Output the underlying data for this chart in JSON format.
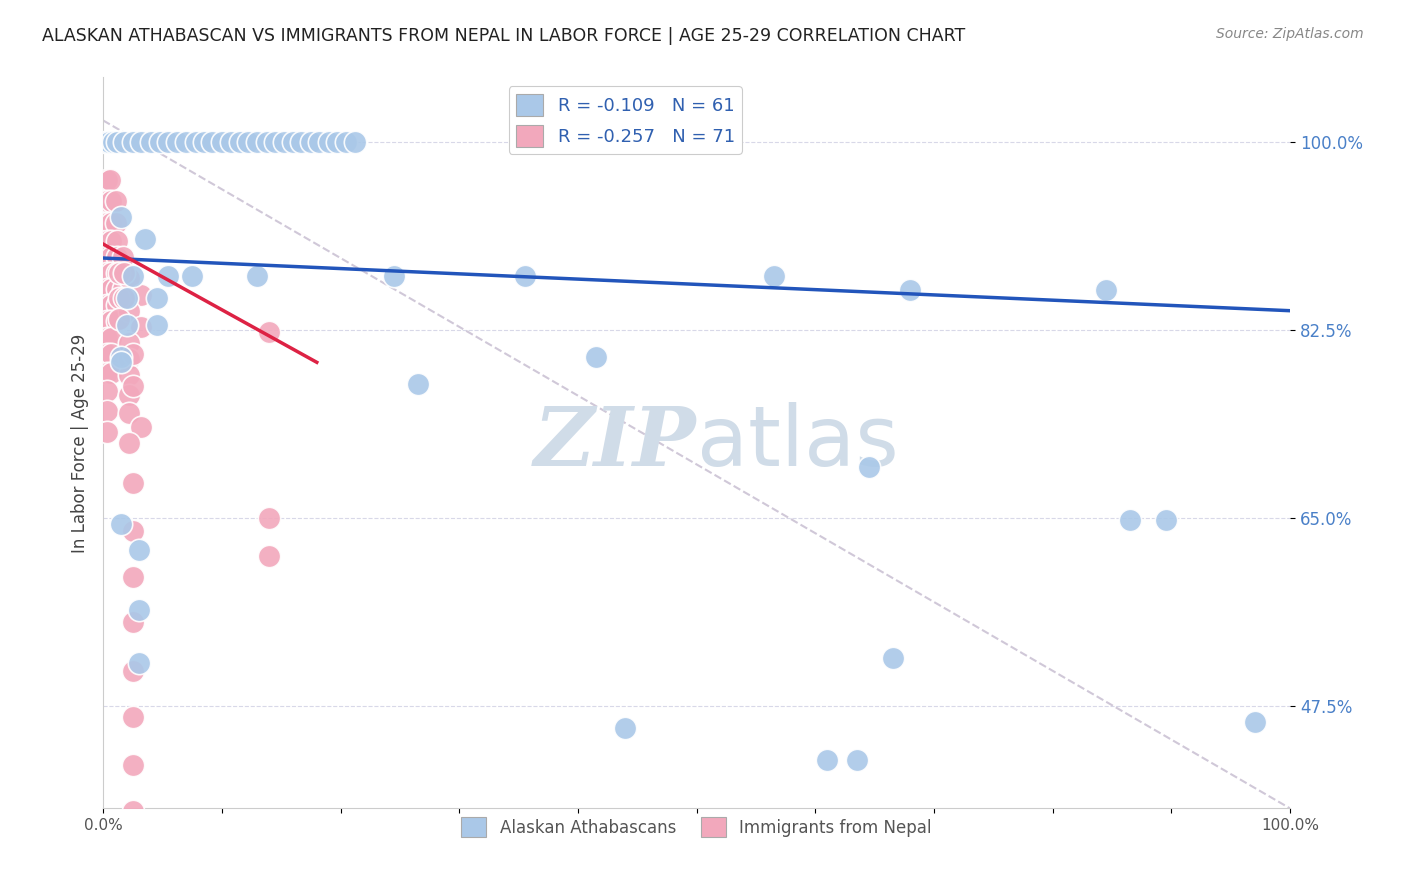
{
  "title": "ALASKAN ATHABASCAN VS IMMIGRANTS FROM NEPAL IN LABOR FORCE | AGE 25-29 CORRELATION CHART",
  "source": "Source: ZipAtlas.com",
  "ylabel": "In Labor Force | Age 25-29",
  "ytick_labels": [
    "100.0%",
    "82.5%",
    "65.0%",
    "47.5%"
  ],
  "ytick_values": [
    1.0,
    0.825,
    0.65,
    0.475
  ],
  "xlim": [
    0.0,
    1.0
  ],
  "ylim": [
    0.38,
    1.06
  ],
  "legend_r_blue": "R = -0.109",
  "legend_n_blue": "N = 61",
  "legend_r_pink": "R = -0.257",
  "legend_n_pink": "N = 71",
  "blue_color": "#aac8e8",
  "pink_color": "#f2a8bc",
  "trendline_blue_color": "#2255bb",
  "trendline_pink_color": "#dd2244",
  "trendline_dash_color": "#d0c8d8",
  "blue_trendline": [
    [
      0.0,
      0.892
    ],
    [
      1.0,
      0.843
    ]
  ],
  "pink_trendline": [
    [
      0.0,
      0.905
    ],
    [
      0.18,
      0.795
    ]
  ],
  "dashed_line": [
    [
      0.0,
      1.02
    ],
    [
      1.0,
      0.38
    ]
  ],
  "blue_scatter": [
    [
      0.002,
      1.0
    ],
    [
      0.005,
      1.0
    ],
    [
      0.008,
      1.0
    ],
    [
      0.012,
      1.0
    ],
    [
      0.018,
      1.0
    ],
    [
      0.025,
      1.0
    ],
    [
      0.032,
      1.0
    ],
    [
      0.04,
      1.0
    ],
    [
      0.048,
      1.0
    ],
    [
      0.055,
      1.0
    ],
    [
      0.062,
      1.0
    ],
    [
      0.07,
      1.0
    ],
    [
      0.078,
      1.0
    ],
    [
      0.085,
      1.0
    ],
    [
      0.092,
      1.0
    ],
    [
      0.1,
      1.0
    ],
    [
      0.108,
      1.0
    ],
    [
      0.115,
      1.0
    ],
    [
      0.122,
      1.0
    ],
    [
      0.13,
      1.0
    ],
    [
      0.138,
      1.0
    ],
    [
      0.145,
      1.0
    ],
    [
      0.152,
      1.0
    ],
    [
      0.16,
      1.0
    ],
    [
      0.167,
      1.0
    ],
    [
      0.175,
      1.0
    ],
    [
      0.182,
      1.0
    ],
    [
      0.19,
      1.0
    ],
    [
      0.197,
      1.0
    ],
    [
      0.205,
      1.0
    ],
    [
      0.212,
      1.0
    ],
    [
      0.015,
      0.93
    ],
    [
      0.035,
      0.91
    ],
    [
      0.025,
      0.875
    ],
    [
      0.055,
      0.875
    ],
    [
      0.075,
      0.875
    ],
    [
      0.02,
      0.855
    ],
    [
      0.045,
      0.855
    ],
    [
      0.02,
      0.83
    ],
    [
      0.045,
      0.83
    ],
    [
      0.015,
      0.8
    ],
    [
      0.13,
      0.875
    ],
    [
      0.245,
      0.875
    ],
    [
      0.355,
      0.875
    ],
    [
      0.565,
      0.875
    ],
    [
      0.68,
      0.862
    ],
    [
      0.845,
      0.862
    ],
    [
      0.415,
      0.8
    ],
    [
      0.265,
      0.775
    ],
    [
      0.645,
      0.698
    ],
    [
      0.865,
      0.648
    ],
    [
      0.895,
      0.648
    ],
    [
      0.665,
      0.52
    ],
    [
      0.44,
      0.455
    ],
    [
      0.61,
      0.425
    ],
    [
      0.635,
      0.425
    ],
    [
      0.97,
      0.46
    ],
    [
      0.015,
      0.795
    ],
    [
      0.015,
      0.645
    ],
    [
      0.03,
      0.62
    ],
    [
      0.03,
      0.565
    ],
    [
      0.03,
      0.515
    ]
  ],
  "pink_scatter": [
    [
      0.003,
      1.0
    ],
    [
      0.006,
      1.0
    ],
    [
      0.009,
      1.0
    ],
    [
      0.013,
      1.0
    ],
    [
      0.003,
      0.965
    ],
    [
      0.006,
      0.965
    ],
    [
      0.003,
      0.945
    ],
    [
      0.007,
      0.945
    ],
    [
      0.011,
      0.945
    ],
    [
      0.003,
      0.925
    ],
    [
      0.007,
      0.925
    ],
    [
      0.011,
      0.925
    ],
    [
      0.003,
      0.908
    ],
    [
      0.007,
      0.908
    ],
    [
      0.012,
      0.908
    ],
    [
      0.003,
      0.893
    ],
    [
      0.007,
      0.893
    ],
    [
      0.012,
      0.893
    ],
    [
      0.017,
      0.893
    ],
    [
      0.003,
      0.878
    ],
    [
      0.007,
      0.878
    ],
    [
      0.012,
      0.878
    ],
    [
      0.017,
      0.878
    ],
    [
      0.003,
      0.863
    ],
    [
      0.007,
      0.863
    ],
    [
      0.012,
      0.863
    ],
    [
      0.017,
      0.863
    ],
    [
      0.003,
      0.848
    ],
    [
      0.007,
      0.848
    ],
    [
      0.012,
      0.848
    ],
    [
      0.003,
      0.833
    ],
    [
      0.007,
      0.833
    ],
    [
      0.012,
      0.833
    ],
    [
      0.003,
      0.818
    ],
    [
      0.007,
      0.818
    ],
    [
      0.003,
      0.803
    ],
    [
      0.007,
      0.803
    ],
    [
      0.003,
      0.785
    ],
    [
      0.007,
      0.785
    ],
    [
      0.003,
      0.768
    ],
    [
      0.003,
      0.75
    ],
    [
      0.003,
      0.73
    ],
    [
      0.022,
      0.873
    ],
    [
      0.032,
      0.858
    ],
    [
      0.022,
      0.843
    ],
    [
      0.032,
      0.828
    ],
    [
      0.022,
      0.813
    ],
    [
      0.022,
      0.798
    ],
    [
      0.022,
      0.783
    ],
    [
      0.022,
      0.765
    ],
    [
      0.022,
      0.748
    ],
    [
      0.032,
      0.735
    ],
    [
      0.022,
      0.72
    ],
    [
      0.013,
      0.878
    ],
    [
      0.018,
      0.878
    ],
    [
      0.013,
      0.855
    ],
    [
      0.018,
      0.855
    ],
    [
      0.013,
      0.835
    ],
    [
      0.025,
      0.803
    ],
    [
      0.025,
      0.773
    ],
    [
      0.025,
      0.683
    ],
    [
      0.025,
      0.638
    ],
    [
      0.025,
      0.595
    ],
    [
      0.025,
      0.553
    ],
    [
      0.025,
      0.508
    ],
    [
      0.025,
      0.465
    ],
    [
      0.025,
      0.42
    ],
    [
      0.025,
      0.378
    ],
    [
      0.14,
      0.823
    ],
    [
      0.14,
      0.65
    ],
    [
      0.14,
      0.615
    ]
  ],
  "watermark_zip": "ZIP",
  "watermark_atlas": "atlas",
  "watermark_color": "#d0dce8"
}
